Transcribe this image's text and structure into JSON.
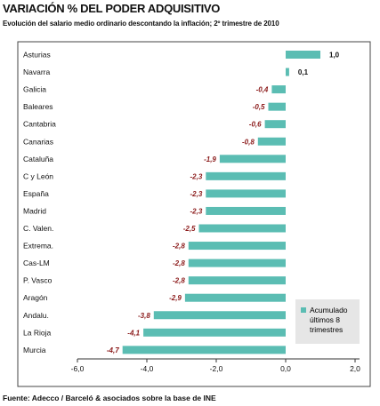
{
  "chart_data": {
    "type": "bar",
    "orientation": "horizontal",
    "title": "VARIACIÓN % DEL PODER ADQUISITIVO",
    "subtitle": "Evolución del salario medio ordinario descontando la inflación; 2º trimestre de 2010",
    "source": "Fuente: Adecco / Barceló & asociados sobre la base de INE",
    "categories": [
      "Asturias",
      "Navarra",
      "Galicia",
      "Baleares",
      "Cantabria",
      "Canarias",
      "Cataluña",
      "C y León",
      "España",
      "Madrid",
      "C. Valen.",
      "Extrema.",
      "Cas-LM",
      "P. Vasco",
      "Aragón",
      "Andalu.",
      "La Rioja",
      "Murcia"
    ],
    "series": [
      {
        "name": "Acumulado últimos 8 trimestres",
        "values": [
          1.0,
          0.1,
          -0.4,
          -0.5,
          -0.6,
          -0.8,
          -1.9,
          -2.3,
          -2.3,
          -2.3,
          -2.5,
          -2.8,
          -2.8,
          -2.8,
          -2.9,
          -3.8,
          -4.1,
          -4.7
        ]
      }
    ],
    "value_labels": [
      "1,0",
      "0,1",
      "-0,4",
      "-0,5",
      "-0,6",
      "-0,8",
      "-1,9",
      "-2,3",
      "-2,3",
      "-2,3",
      "-2,5",
      "-2,8",
      "-2,8",
      "-2,8",
      "-2,9",
      "-3,8",
      "-4,1",
      "-4,7"
    ],
    "xlim": [
      -6.0,
      2.0
    ],
    "xticks": [
      -6.0,
      -4.0,
      -2.0,
      0.0,
      2.0
    ],
    "xtick_labels": [
      "-6,0",
      "-4,0",
      "-2,0",
      "0,0",
      "2,0"
    ],
    "legend": [
      "Acumulado",
      "últimos 8",
      "trimestres"
    ],
    "legend_position": "bottom-right",
    "grid": false,
    "colors": {
      "bar": "#5bbdb3",
      "negative_label": "#8b1a1a",
      "positive_label": "#111111",
      "frame": "#444444",
      "legend_bg": "#e6e6e6"
    }
  }
}
